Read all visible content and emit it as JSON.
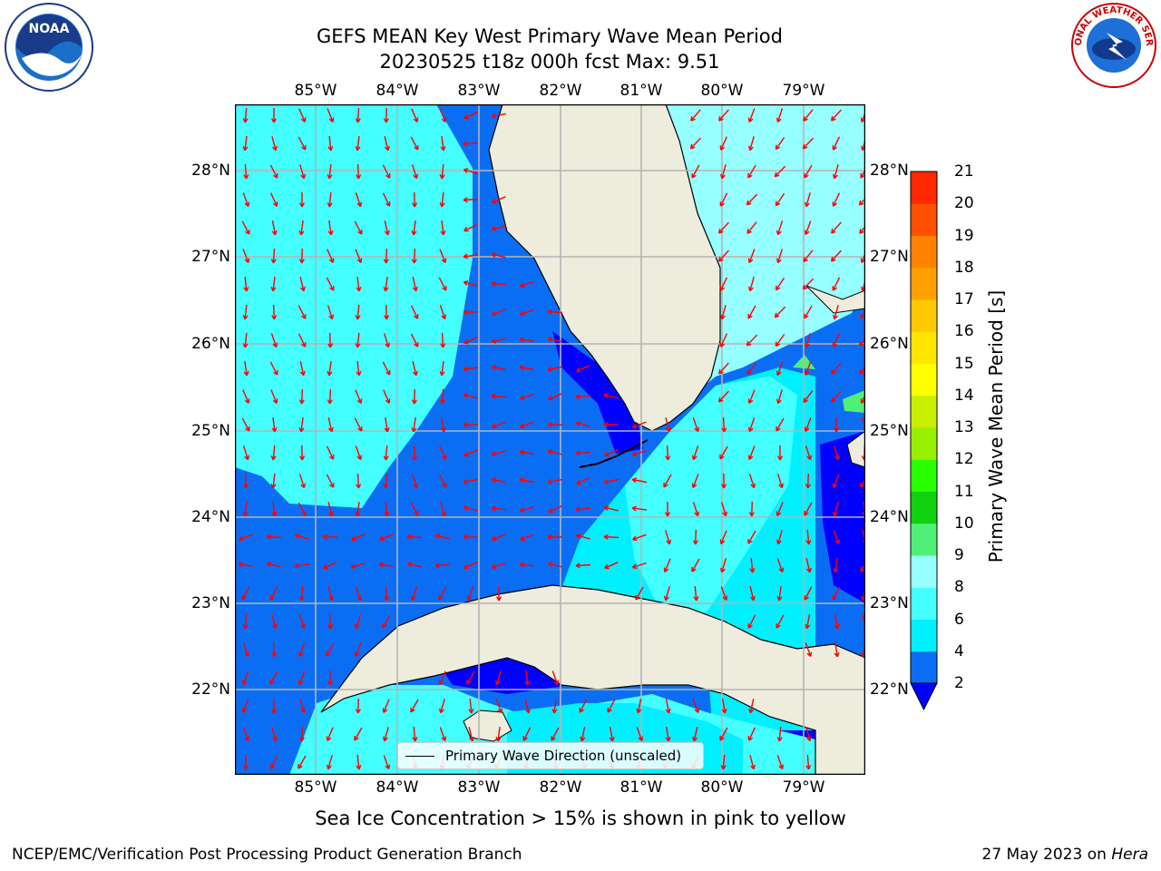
{
  "title": {
    "line1": "GEFS MEAN Key West Primary Wave Mean Period",
    "line2": "20230525 t18z 000h fcst   Max: 9.51"
  },
  "logos": {
    "left": "NOAA",
    "right": "NATIONAL WEATHER SERVICE"
  },
  "map": {
    "lon_labels": [
      "85°W",
      "84°W",
      "83°W",
      "82°W",
      "81°W",
      "80°W",
      "79°W"
    ],
    "lat_labels": [
      "28°N",
      "27°N",
      "26°N",
      "25°N",
      "24°N",
      "23°N",
      "22°N"
    ],
    "legend_label": "Primary Wave Direction (unscaled)",
    "colors": {
      "land": "#eeecdc",
      "arrow": "#ff0000",
      "grid": "#b4b4b4"
    }
  },
  "colorbar": {
    "title": "Primary Wave Mean Period [s]",
    "ticks": [
      "2",
      "4",
      "6",
      "8",
      "9",
      "10",
      "11",
      "12",
      "13",
      "14",
      "15",
      "16",
      "17",
      "18",
      "19",
      "20",
      "21"
    ],
    "colors": [
      "#0a6ef5",
      "#00f0ff",
      "#44ffff",
      "#96ffff",
      "#50f078",
      "#10d010",
      "#28ff00",
      "#96f000",
      "#c8f000",
      "#ffff00",
      "#ffe600",
      "#ffc800",
      "#ffa000",
      "#ff8200",
      "#ff5000",
      "#ff2800"
    ],
    "underflow_color": "#0000ff"
  },
  "note": "Sea Ice Concentration > 15% is shown in pink to yellow",
  "footer": {
    "left": "NCEP/EMC/Verification Post Processing Product Generation Branch",
    "date": "27 May 2023 on",
    "machine": "Hera"
  }
}
